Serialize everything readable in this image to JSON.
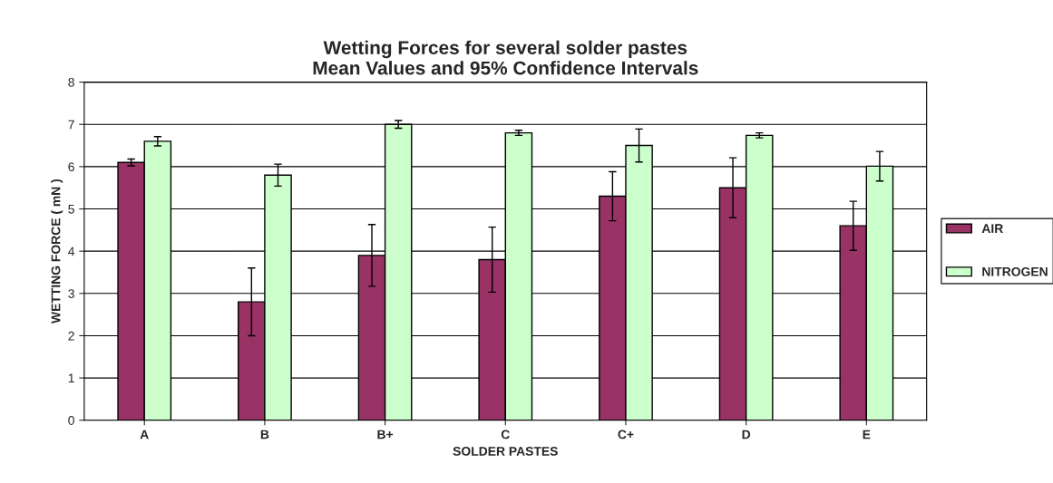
{
  "chart_data": {
    "type": "bar",
    "title": "Wetting Forces for several solder pastes\nMean Values and 95% Confidence Intervals",
    "xlabel": "SOLDER PASTES",
    "ylabel": "WETTING FORCE ( mN )",
    "categories": [
      "A",
      "B",
      "B+",
      "C",
      "C+",
      "D",
      "E"
    ],
    "series": [
      {
        "name": "AIR",
        "color": "#993366",
        "values": [
          6.1,
          2.8,
          3.9,
          3.8,
          5.3,
          5.5,
          4.6
        ],
        "errors": [
          0.08,
          0.8,
          0.73,
          0.77,
          0.58,
          0.71,
          0.58
        ]
      },
      {
        "name": "NITROGEN",
        "color": "#ccffcc",
        "values": [
          6.6,
          5.8,
          7.0,
          6.8,
          6.5,
          6.74,
          6.01
        ],
        "errors": [
          0.11,
          0.26,
          0.09,
          0.06,
          0.39,
          0.06,
          0.35
        ]
      }
    ],
    "ylim": [
      0,
      8
    ],
    "yticks": [
      0,
      1,
      2,
      3,
      4,
      5,
      6,
      7,
      8
    ],
    "grid": "y",
    "legend": "right"
  }
}
